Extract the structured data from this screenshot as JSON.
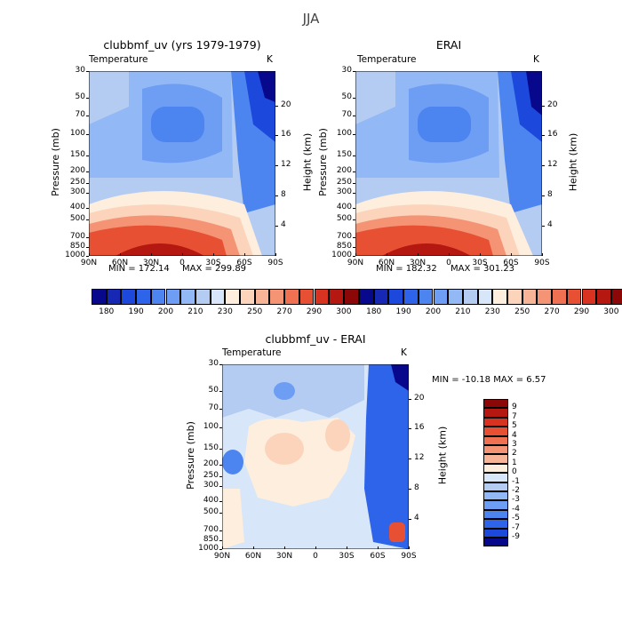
{
  "figure": {
    "title": "JJA"
  },
  "panels": [
    {
      "id": "model",
      "title": "clubbmf_uv (yrs 1979-1979)",
      "left_label": "Temperature",
      "right_label": "K",
      "min_label": "MIN = 172.14",
      "max_label": "MAX = 299.89"
    },
    {
      "id": "obs",
      "title": "ERAI",
      "left_label": "Temperature",
      "right_label": "K",
      "min_label": "MIN = 182.32",
      "max_label": "MAX = 301.23"
    },
    {
      "id": "diff",
      "title": "clubbmf_uv - ERAI",
      "left_label": "Temperature",
      "right_label": "K",
      "minmax_label": "MIN = -10.18   MAX =    6.57"
    }
  ],
  "axes": {
    "ylabel": "Pressure (mb)",
    "y2label": "Height (km)",
    "pressure_ticks": [
      "30",
      "50",
      "70",
      "100",
      "150",
      "200",
      "250",
      "300",
      "400",
      "500",
      "700",
      "850",
      "1000"
    ],
    "height_ticks": [
      "20",
      "16",
      "12",
      "8",
      "4"
    ],
    "lat_ticks": [
      "90N",
      "60N",
      "30N",
      "0",
      "30S",
      "60S",
      "90S"
    ]
  },
  "colorbar_abs": {
    "labels": [
      "180",
      "190",
      "200",
      "210",
      "230",
      "250",
      "270",
      "290",
      "300"
    ],
    "colors": [
      "#08088c",
      "#1628b4",
      "#1c48dc",
      "#2e64ea",
      "#4c84f0",
      "#6e9ef4",
      "#92b8f6",
      "#b4ccf2",
      "#d8e6fa",
      "#fdeedd",
      "#fcd4bc",
      "#f8b496",
      "#f49474",
      "#f07052",
      "#e85034",
      "#d83220",
      "#b41810",
      "#8c0808"
    ]
  },
  "colorbar_diff": {
    "labels": [
      "9",
      "7",
      "5",
      "4",
      "3",
      "2",
      "1",
      "0",
      "-1",
      "-2",
      "-3",
      "-4",
      "-5",
      "-7",
      "-9"
    ],
    "colors": [
      "#8c0808",
      "#b41810",
      "#d83220",
      "#e85034",
      "#f07052",
      "#f49474",
      "#f8b496",
      "#fdeedd",
      "#d8e6fa",
      "#b4ccf2",
      "#92b8f6",
      "#6e9ef4",
      "#4c84f0",
      "#2e64ea",
      "#1c48dc",
      "#08088c"
    ]
  },
  "chart_data": [
    {
      "type": "heatmap",
      "title": "clubbmf_uv (yrs 1979-1979)",
      "variable": "Temperature",
      "units": "K",
      "x_categories": [
        "90N",
        "60N",
        "30N",
        "0",
        "30S",
        "60S",
        "90S"
      ],
      "y_pressure_mb": [
        30,
        50,
        70,
        100,
        150,
        200,
        250,
        300,
        400,
        500,
        700,
        850,
        1000
      ],
      "min": 172.14,
      "max": 299.89
    },
    {
      "type": "heatmap",
      "title": "ERAI",
      "variable": "Temperature",
      "units": "K",
      "x_categories": [
        "90N",
        "60N",
        "30N",
        "0",
        "30S",
        "60S",
        "90S"
      ],
      "y_pressure_mb": [
        30,
        50,
        70,
        100,
        150,
        200,
        250,
        300,
        400,
        500,
        700,
        850,
        1000
      ],
      "min": 182.32,
      "max": 301.23
    },
    {
      "type": "heatmap",
      "title": "clubbmf_uv - ERAI",
      "variable": "Temperature",
      "units": "K",
      "x_categories": [
        "90N",
        "60N",
        "30N",
        "0",
        "30S",
        "60S",
        "90S"
      ],
      "y_pressure_mb": [
        30,
        50,
        70,
        100,
        150,
        200,
        250,
        300,
        400,
        500,
        700,
        850,
        1000
      ],
      "min": -10.18,
      "max": 6.57
    }
  ]
}
